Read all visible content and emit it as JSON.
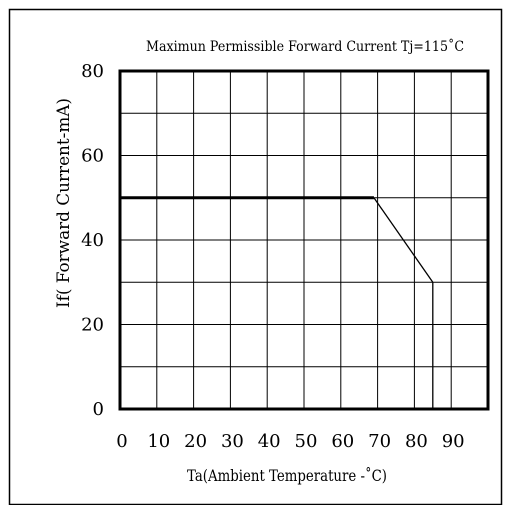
{
  "chart_data": {
    "type": "line",
    "title": "Maximun Permissible Forward Current Tj=115˚C",
    "xlabel": "Ta(Ambient Temperature -˚C)",
    "ylabel": "If( Forward Current-mA)",
    "xlim": [
      0,
      100
    ],
    "ylim": [
      0,
      80
    ],
    "x_ticks": [
      0,
      10,
      20,
      30,
      40,
      50,
      60,
      70,
      80,
      90
    ],
    "x_tick_labels": [
      "0",
      "10",
      "20",
      "30",
      "40",
      "50",
      "60",
      "70",
      "80",
      "90"
    ],
    "y_ticks": [
      0,
      20,
      40,
      60,
      80
    ],
    "y_tick_labels": [
      "0",
      "20",
      "40",
      "60",
      "80"
    ],
    "grid": true,
    "series": [
      {
        "x": [
          0,
          69,
          85,
          85
        ],
        "y": [
          50,
          50,
          30,
          0
        ]
      }
    ]
  }
}
